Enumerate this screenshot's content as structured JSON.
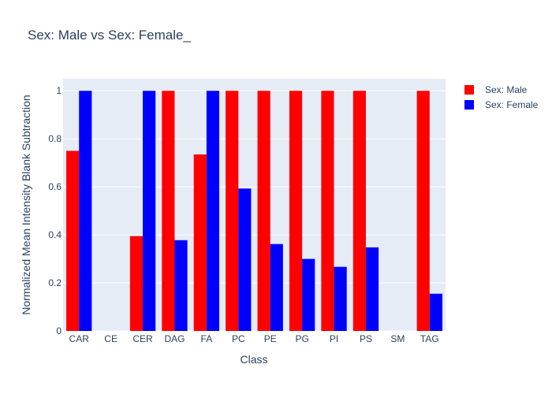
{
  "chart_data": {
    "type": "bar",
    "title": "Sex: Male vs Sex: Female_",
    "xlabel": "Class",
    "ylabel": "Normalized Mean Intensity Blank Subtraction",
    "categories": [
      "CAR",
      "CE",
      "CER",
      "DAG",
      "FA",
      "PC",
      "PE",
      "PG",
      "PI",
      "PS",
      "SM",
      "TAG"
    ],
    "series": [
      {
        "name": "Sex: Male",
        "color": "#ff0000",
        "values": [
          0.75,
          0,
          0.395,
          1,
          0.735,
          1,
          1,
          1,
          1,
          1,
          0,
          1
        ]
      },
      {
        "name": "Sex: Female",
        "color": "#0000ff",
        "values": [
          1,
          0,
          1,
          0.378,
          1,
          0.593,
          0.362,
          0.3,
          0.267,
          0.348,
          0,
          0.155
        ]
      }
    ],
    "ylim": [
      0,
      1.05
    ],
    "yticks": [
      0,
      0.2,
      0.4,
      0.6,
      0.8,
      1
    ],
    "ytick_labels": [
      "0",
      "0.2",
      "0.4",
      "0.6",
      "0.8",
      "1"
    ],
    "grid": true,
    "legend_position": "top-right",
    "plot_background": "#e5ecf6"
  }
}
